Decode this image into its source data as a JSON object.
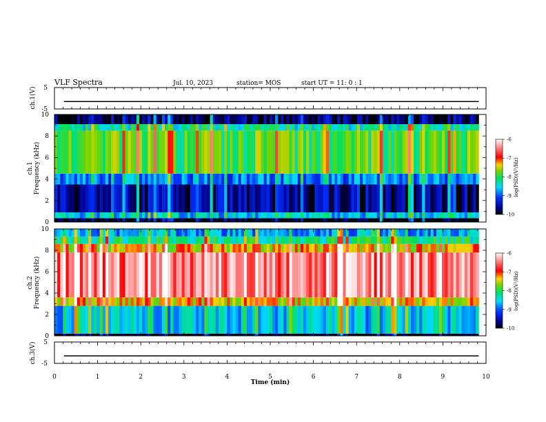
{
  "header": {
    "title": "VLF Spectra",
    "date": "Jul. 10, 2023",
    "station": "station= MOS",
    "start": "start UT =  11: 0  : 1"
  },
  "chart_data": {
    "type": "heatmap",
    "xlabel": "Time (min)",
    "xlim": [
      0,
      10
    ],
    "xticks": [
      "0",
      "1",
      "2",
      "3",
      "4",
      "5",
      "6",
      "7",
      "8",
      "9",
      "10"
    ],
    "data_end_min": 9.83,
    "panels": [
      {
        "kind": "waveform",
        "ylabel": "ch.1(V)",
        "yticks": [
          "5",
          "-5"
        ],
        "ylim": [
          -5,
          5
        ],
        "level": -1.5
      },
      {
        "kind": "spectrogram",
        "ylabel_line1": "ch.1",
        "ylabel_line2": "Frequency (kHz)",
        "ylim": [
          0,
          10
        ],
        "yticks": [
          "0",
          "2",
          "4",
          "6",
          "8",
          "10"
        ],
        "colorbar": {
          "label": "log(PSD)(V²/Hz)",
          "ticks": [
            "-6",
            "-7",
            "-8",
            "-9",
            "-10"
          ],
          "range": [
            -10,
            -6
          ]
        },
        "bands_khz": [
          {
            "from": 0.0,
            "to": 0.35,
            "level": -10
          },
          {
            "from": 0.35,
            "to": 0.9,
            "level": -8.6
          },
          {
            "from": 0.9,
            "to": 3.5,
            "level": -9.6
          },
          {
            "from": 3.5,
            "to": 4.5,
            "level": -8.9
          },
          {
            "from": 4.5,
            "to": 8.5,
            "level": -7.9
          },
          {
            "from": 8.5,
            "to": 9.1,
            "level": -8.3
          },
          {
            "from": 9.1,
            "to": 10.0,
            "level": -9.8
          }
        ]
      },
      {
        "kind": "spectrogram",
        "ylabel_line1": "ch.2",
        "ylabel_line2": "Frequency (kHz)",
        "ylim": [
          0,
          10
        ],
        "yticks": [
          "0",
          "2",
          "4",
          "6",
          "8",
          "10"
        ],
        "colorbar": {
          "label": "log(PSD)(V²/Hz)",
          "ticks": [
            "-6",
            "-7",
            "-8",
            "-9",
            "-10"
          ],
          "range": [
            -10,
            -6
          ]
        },
        "bands_khz": [
          {
            "from": 0.0,
            "to": 0.2,
            "level": -10
          },
          {
            "from": 0.2,
            "to": 2.8,
            "level": -8.6
          },
          {
            "from": 2.8,
            "to": 3.6,
            "level": -7.4
          },
          {
            "from": 3.6,
            "to": 7.8,
            "level": -6.5
          },
          {
            "from": 7.8,
            "to": 8.6,
            "level": -7.4
          },
          {
            "from": 8.6,
            "to": 9.3,
            "level": -8.2
          },
          {
            "from": 9.3,
            "to": 10.0,
            "level": -8.7
          }
        ]
      },
      {
        "kind": "waveform",
        "ylabel": "ch.3(V)",
        "yticks": [
          "5",
          "-5"
        ],
        "ylim": [
          -5,
          5
        ],
        "level": -1.5
      }
    ]
  }
}
